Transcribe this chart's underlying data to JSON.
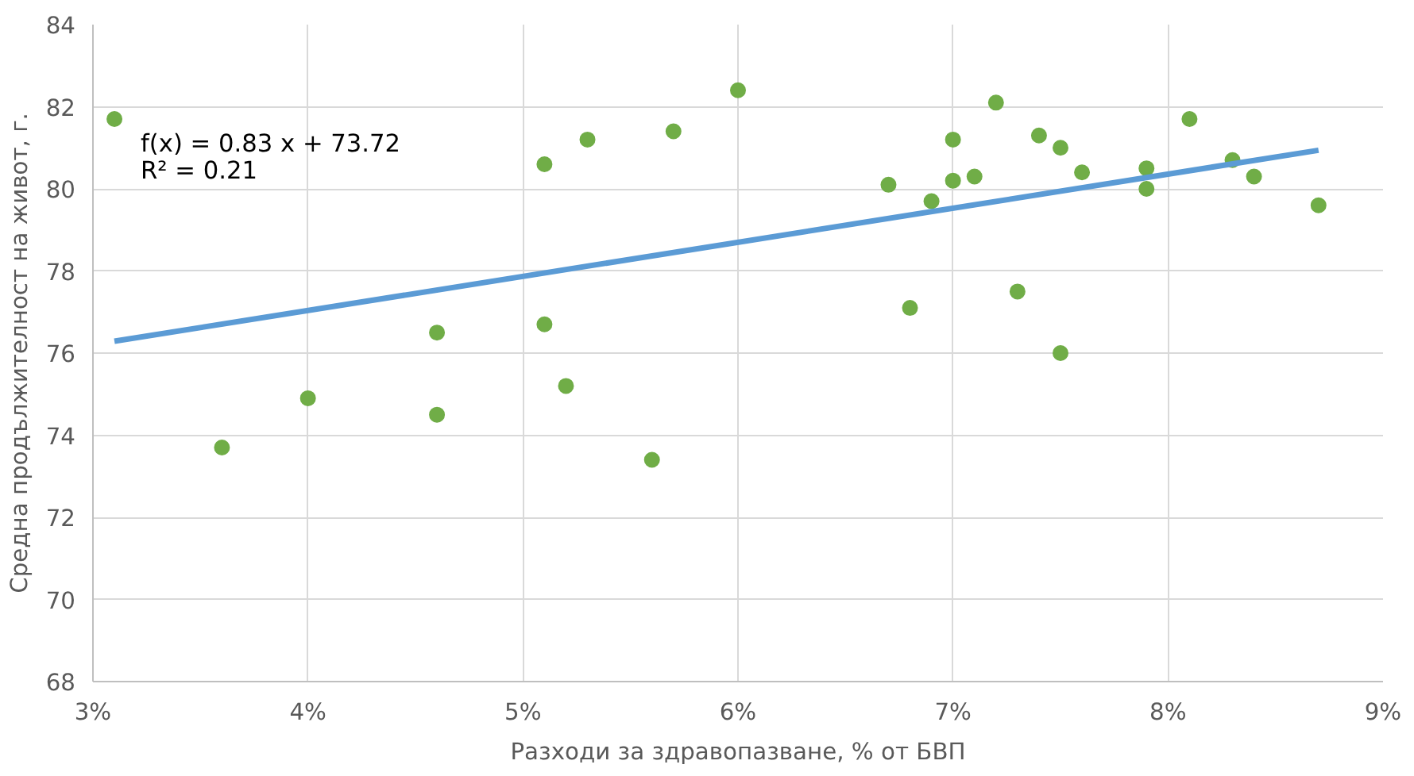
{
  "chart_data": {
    "type": "scatter",
    "xlabel": "Разходи за здравопазване, % от БВП",
    "ylabel": "Средна продължителност на живот, г.",
    "annotations": [
      "f(x) = 0.83 x + 73.72",
      "R² = 0.21"
    ],
    "xlim": [
      3,
      9
    ],
    "xticks": [
      {
        "value": 3,
        "label": "3%"
      },
      {
        "value": 4,
        "label": "4%"
      },
      {
        "value": 5,
        "label": "5%"
      },
      {
        "value": 6,
        "label": "6%"
      },
      {
        "value": 7,
        "label": "7%"
      },
      {
        "value": 8,
        "label": "8%"
      },
      {
        "value": 9,
        "label": "9%"
      }
    ],
    "ylim": [
      68,
      84
    ],
    "yticks": [
      68,
      70,
      72,
      74,
      76,
      78,
      80,
      82,
      84
    ],
    "grid": true,
    "series": [
      {
        "marker": "circle",
        "color": "#70ad47",
        "x": [
          3.1,
          3.6,
          4.0,
          4.6,
          4.6,
          5.1,
          5.1,
          5.2,
          5.3,
          5.6,
          5.7,
          6.0,
          6.7,
          6.8,
          6.9,
          7.0,
          7.0,
          7.1,
          7.2,
          7.3,
          7.4,
          7.5,
          7.5,
          7.6,
          7.9,
          7.9,
          8.1,
          8.3,
          8.4,
          8.7
        ],
        "values": [
          81.7,
          73.7,
          74.9,
          76.5,
          74.5,
          80.6,
          76.7,
          75.2,
          81.2,
          73.4,
          81.4,
          82.4,
          80.1,
          77.1,
          79.7,
          81.2,
          80.2,
          80.3,
          82.1,
          77.5,
          81.3,
          81.0,
          76.0,
          80.4,
          80.5,
          80.0,
          81.7,
          80.7,
          80.3,
          79.6
        ]
      },
      {
        "type": "line",
        "color": "#5b9bd5",
        "x": [
          3.1,
          8.7
        ],
        "values": [
          76.29,
          80.94
        ],
        "line_style": "solid"
      }
    ]
  }
}
